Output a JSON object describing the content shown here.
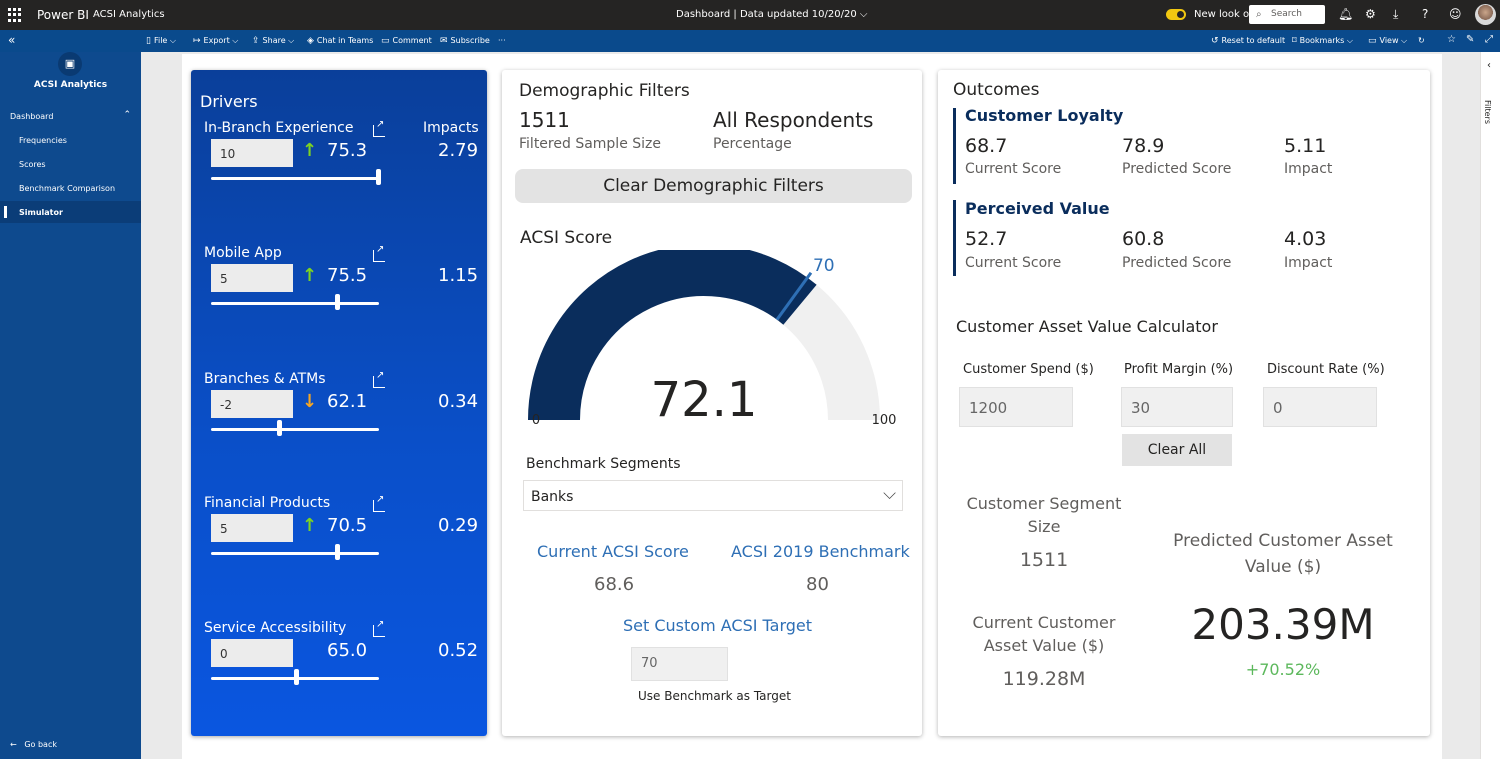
{
  "topbar": {
    "brand": "Power BI",
    "app_name": "ACSI Analytics",
    "center_text": "Dashboard  |  Data updated 10/20/20  ⌵",
    "new_look": "New look on",
    "search_placeholder": "Search"
  },
  "actionbar": {
    "file": "File ⌵",
    "export": "Export ⌵",
    "share": "Share ⌵",
    "chat": "Chat in Teams",
    "comment": "Comment",
    "subscribe": "Subscribe",
    "more": "···",
    "reset": "Reset to default",
    "bookmarks": "Bookmarks ⌵",
    "view": "View ⌵"
  },
  "nav": {
    "logo_glyph": "▣",
    "title": "ACSI Analytics",
    "section": "Dashboard",
    "items": [
      "Frequencies",
      "Scores",
      "Benchmark Comparison",
      "Simulator"
    ],
    "go_back": "Go back"
  },
  "filters_pane": "Filters",
  "drivers": {
    "title": "Drivers",
    "impacts_header": "Impacts",
    "items": [
      {
        "name": "In-Branch Experience",
        "input": "10",
        "arrow": "up",
        "score": "75.3",
        "impact": "2.79",
        "slider": 1.0
      },
      {
        "name": "Mobile App",
        "input": "5",
        "arrow": "up",
        "score": "75.5",
        "impact": "1.15",
        "slider": 0.75
      },
      {
        "name": "Branches & ATMs",
        "input": "-2",
        "arrow": "down",
        "score": "62.1",
        "impact": "0.34",
        "slider": 0.4
      },
      {
        "name": "Financial Products",
        "input": "5",
        "arrow": "up",
        "score": "70.5",
        "impact": "0.29",
        "slider": 0.75
      },
      {
        "name": "Service Accessibility",
        "input": "0",
        "arrow": "none",
        "score": "65.0",
        "impact": "0.52",
        "slider": 0.5
      }
    ]
  },
  "demographic": {
    "title": "Demographic Filters",
    "sample_value": "1511",
    "sample_label": "Filtered Sample Size",
    "pct_value": "All Respondents",
    "pct_label": "Percentage",
    "clear_button": "Clear Demographic Filters"
  },
  "acsi": {
    "title": "ACSI Score",
    "value": 72.1,
    "value_label": "72.1",
    "min": 0,
    "max": 100,
    "min_label": "0",
    "max_label": "100",
    "target": 70,
    "target_label": "70",
    "fill_color": "#0a2d5c",
    "target_color": "#2e6fb5",
    "track_color": "#f0f0f0"
  },
  "benchmark": {
    "title": "Benchmark Segments",
    "selected": "Banks",
    "current_label": "Current ACSI Score",
    "current_value": "68.6",
    "bench_label": "ACSI 2019 Benchmark",
    "bench_value": "80",
    "custom_label": "Set Custom ACSI Target",
    "custom_value": "70",
    "use_benchmark": "Use Benchmark as Target"
  },
  "outcomes": {
    "title": "Outcomes",
    "loyalty": {
      "title": "Customer Loyalty",
      "current": "68.7",
      "current_label": "Current Score",
      "predicted": "78.9",
      "predicted_label": "Predicted Score",
      "impact": "5.11",
      "impact_label": "Impact"
    },
    "value": {
      "title": "Perceived Value",
      "current": "52.7",
      "current_label": "Current Score",
      "predicted": "60.8",
      "predicted_label": "Predicted Score",
      "impact": "4.03",
      "impact_label": "Impact"
    }
  },
  "calculator": {
    "title": "Customer Asset Value Calculator",
    "spend_label": "Customer Spend ($)",
    "spend_value": "1200",
    "margin_label": "Profit Margin (%)",
    "margin_value": "30",
    "discount_label": "Discount Rate (%)",
    "discount_value": "0",
    "clear_all": "Clear All",
    "segment_label_1": "Customer Segment",
    "segment_label_2": "Size",
    "segment_value": "1511",
    "current_cav_1": "Current Customer",
    "current_cav_2": "Asset Value ($)",
    "current_cav_value": "119.28M",
    "pred_cav_1": "Predicted Customer Asset",
    "pred_cav_2": "Value ($)",
    "pred_cav_value": "203.39M",
    "pred_change": "+70.52%",
    "change_color": "#5cb85c"
  },
  "colors": {
    "accent_blue": "#2e6fb5",
    "dark_navy": "#0a2d5c"
  }
}
